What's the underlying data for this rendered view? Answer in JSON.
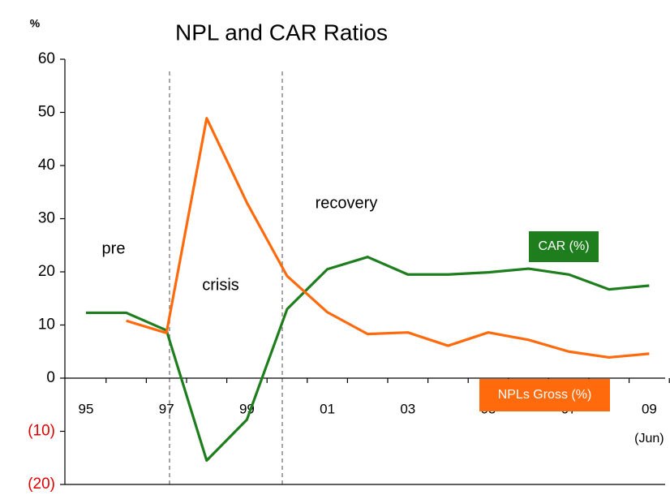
{
  "chart_data": {
    "type": "line",
    "title": "NPL and CAR Ratios",
    "y_unit": "%",
    "categories": [
      "95",
      null,
      "97",
      null,
      "99",
      null,
      "01",
      null,
      "03",
      null,
      "05",
      null,
      "07",
      null,
      "09"
    ],
    "x_note": "(Jun)",
    "series": [
      {
        "name": "CAR (%)",
        "color": "#1e7e1e",
        "values": [
          12.3,
          12.3,
          9,
          -15.5,
          -7.8,
          13,
          20.5,
          22.8,
          19.5,
          19.5,
          19.9,
          20.6,
          19.5,
          16.7,
          17.4
        ]
      },
      {
        "name": "NPLs Gross (%)",
        "color": "#ff6a0d",
        "values": [
          null,
          10.8,
          8.5,
          48.9,
          33,
          19.2,
          12.4,
          8.3,
          8.6,
          6.1,
          8.6,
          7.2,
          5.0,
          3.9,
          4.6
        ]
      }
    ],
    "annotations": [
      "pre",
      "crisis",
      "recovery"
    ],
    "ylim": [
      -20,
      60
    ],
    "yticks": [
      {
        "value": -20,
        "label": "(20)"
      },
      {
        "value": -10,
        "label": "(10)"
      },
      0,
      10,
      20,
      30,
      40,
      50,
      60
    ],
    "negative_tick_color": "#e00000"
  }
}
